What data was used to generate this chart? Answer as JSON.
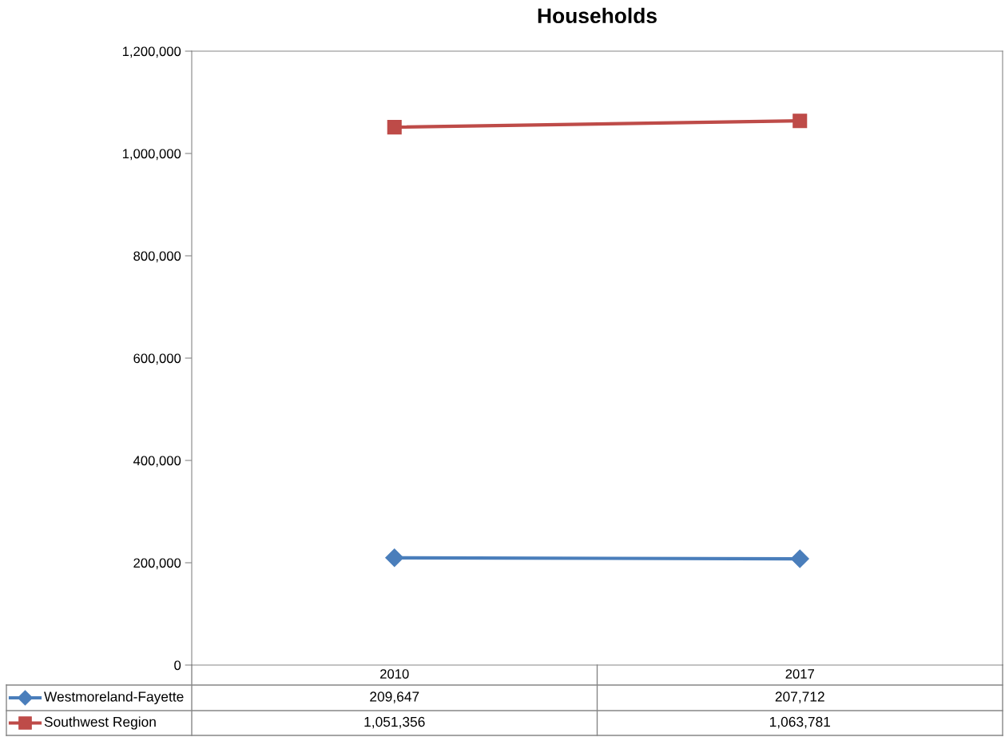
{
  "chart_data": {
    "type": "line",
    "title": "Households",
    "categories": [
      "2010",
      "2017"
    ],
    "series": [
      {
        "name": "Westmoreland-Fayette",
        "color": "#4a7ebb",
        "values": [
          209647,
          207712
        ],
        "value_labels": [
          "209,647",
          "207,712"
        ],
        "marker": "diamond"
      },
      {
        "name": "Southwest Region",
        "color": "#be4b48",
        "values": [
          1051356,
          1063781
        ],
        "value_labels": [
          "1,051,356",
          "1,063,781"
        ],
        "marker": "square"
      }
    ],
    "ylim": [
      0,
      1200000
    ],
    "yticks": [
      {
        "value": 0,
        "label": "0"
      },
      {
        "value": 200000,
        "label": "200,000"
      },
      {
        "value": 400000,
        "label": "400,000"
      },
      {
        "value": 600000,
        "label": "600,000"
      },
      {
        "value": 800000,
        "label": "800,000"
      },
      {
        "value": 1000000,
        "label": "1,000,000"
      },
      {
        "value": 1200000,
        "label": "1,200,000"
      }
    ],
    "legend": "bottom",
    "line_style": "solid"
  }
}
